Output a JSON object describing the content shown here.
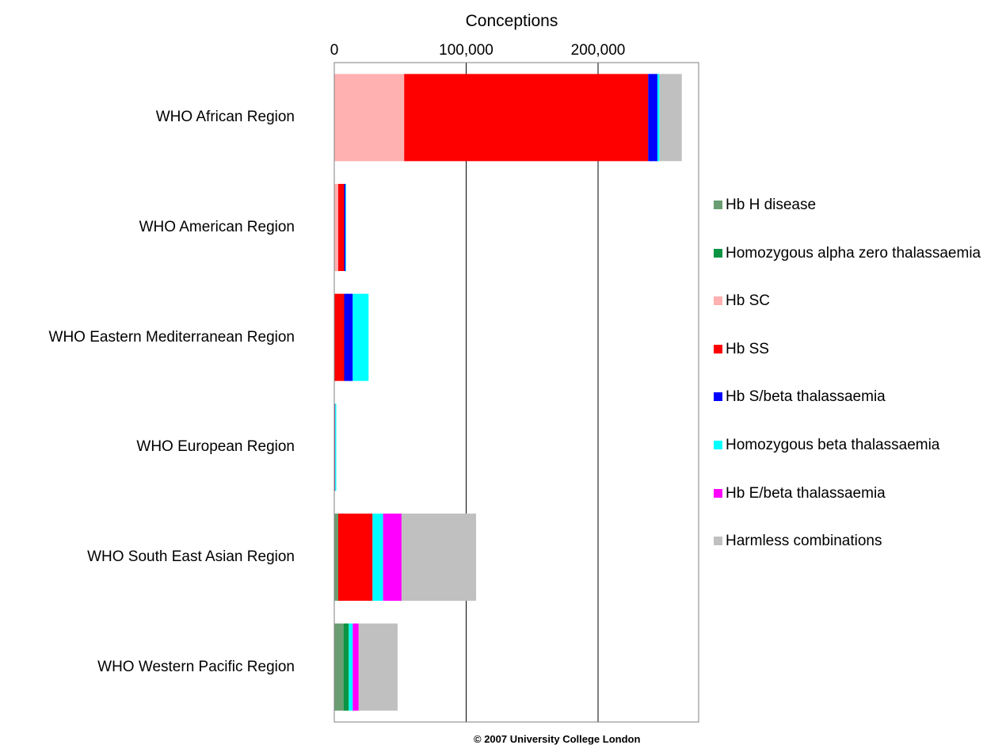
{
  "chart_data": {
    "type": "bar",
    "orientation": "horizontal",
    "stacked": true,
    "title": "",
    "xlabel": "Conceptions",
    "ylabel": "",
    "xlim": [
      0,
      276000
    ],
    "x_ticks": [
      {
        "value": 0,
        "label": "0"
      },
      {
        "value": 100000,
        "label": "100,000"
      },
      {
        "value": 200000,
        "label": "200,000"
      }
    ],
    "grid": "vertical major gridlines",
    "legend_position": "right",
    "categories": [
      "WHO African Region",
      "WHO American Region",
      "WHO Eastern Mediterranean Region",
      "WHO European Region",
      "WHO South East Asian Region",
      "WHO Western Pacific Region"
    ],
    "series": [
      {
        "name": "Hb H disease",
        "color": "#6a9e72",
        "values": [
          0,
          0,
          0,
          0,
          3000,
          7000
        ]
      },
      {
        "name": "Homozygous alpha zero thalassaemia",
        "color": "#0b9444",
        "values": [
          0,
          0,
          0,
          0,
          0,
          4000
        ]
      },
      {
        "name": "Hb SC",
        "color": "#ffb0b0",
        "values": [
          53000,
          3000,
          0,
          300,
          0,
          0
        ]
      },
      {
        "name": "Hb SS",
        "color": "#ff0000",
        "values": [
          185000,
          4500,
          7500,
          200,
          26000,
          0
        ]
      },
      {
        "name": "Hb S/beta thalassaemia",
        "color": "#0000ff",
        "values": [
          7000,
          1000,
          6500,
          200,
          0,
          0
        ]
      },
      {
        "name": "Homozygous beta thalassaemia",
        "color": "#00ffff",
        "values": [
          1500,
          500,
          12000,
          800,
          8000,
          3000
        ]
      },
      {
        "name": "Hb E/beta thalassaemia",
        "color": "#ff00ff",
        "values": [
          0,
          0,
          0,
          0,
          14000,
          4500
        ]
      },
      {
        "name": "Harmless combinations",
        "color": "#c0c0c0",
        "values": [
          17000,
          0,
          0,
          0,
          56500,
          29500
        ]
      }
    ]
  },
  "footer": {
    "copyright": "© 2007 University College London"
  }
}
